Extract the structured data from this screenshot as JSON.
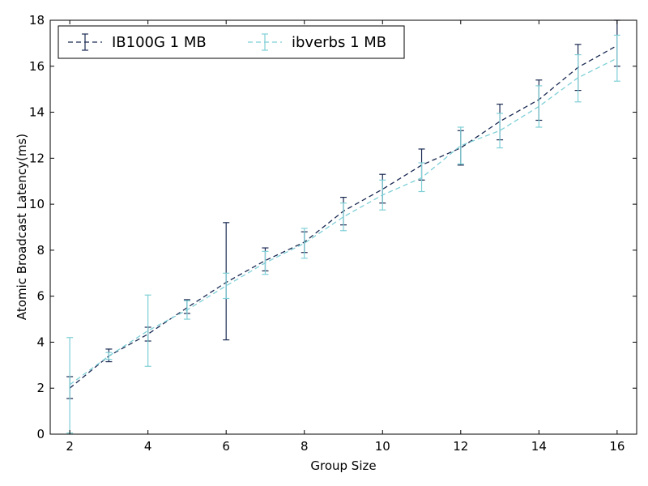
{
  "chart_data": {
    "type": "line",
    "title": "",
    "xlabel": "Group Size",
    "ylabel": "Atomic Broadcast Latency(ms)",
    "xlim": [
      1.5,
      16.5
    ],
    "ylim": [
      0,
      18
    ],
    "xticks": [
      2,
      4,
      6,
      8,
      10,
      12,
      14,
      16
    ],
    "yticks": [
      0,
      2,
      4,
      6,
      8,
      10,
      12,
      14,
      16,
      18
    ],
    "grid": false,
    "legend_position": "top-left",
    "x": [
      2,
      3,
      4,
      5,
      6,
      7,
      8,
      9,
      10,
      11,
      12,
      13,
      14,
      15,
      16
    ],
    "series": [
      {
        "name": "IB100G 1 MB",
        "color": "#1a2a52",
        "linestyle": "dashed",
        "values": [
          2.0,
          3.4,
          4.35,
          5.5,
          6.6,
          7.55,
          8.35,
          9.7,
          10.65,
          11.7,
          12.45,
          13.6,
          14.55,
          15.95,
          16.9
        ],
        "err_low": [
          1.55,
          3.15,
          4.05,
          5.25,
          4.1,
          7.1,
          7.9,
          9.1,
          10.05,
          11.05,
          11.7,
          12.8,
          13.65,
          14.95,
          16.0
        ],
        "err_high": [
          2.5,
          3.7,
          4.65,
          5.85,
          9.2,
          8.1,
          8.8,
          10.3,
          11.3,
          12.4,
          13.2,
          14.35,
          15.4,
          16.95,
          18.0
        ]
      },
      {
        "name": "ibverbs 1 MB",
        "color": "#7ecfd6",
        "linestyle": "dashed",
        "values": [
          2.15,
          3.4,
          4.5,
          5.4,
          6.45,
          7.45,
          8.3,
          9.45,
          10.4,
          11.15,
          12.55,
          13.2,
          14.25,
          15.5,
          16.35
        ],
        "err_low": [
          0.05,
          3.25,
          2.95,
          5.0,
          5.9,
          6.95,
          7.65,
          8.85,
          9.75,
          10.55,
          11.75,
          12.45,
          13.35,
          14.45,
          15.35
        ],
        "err_high": [
          4.2,
          3.55,
          6.05,
          5.8,
          7.0,
          7.95,
          8.95,
          10.05,
          11.05,
          11.8,
          13.35,
          13.95,
          15.15,
          16.5,
          17.35
        ]
      }
    ]
  }
}
